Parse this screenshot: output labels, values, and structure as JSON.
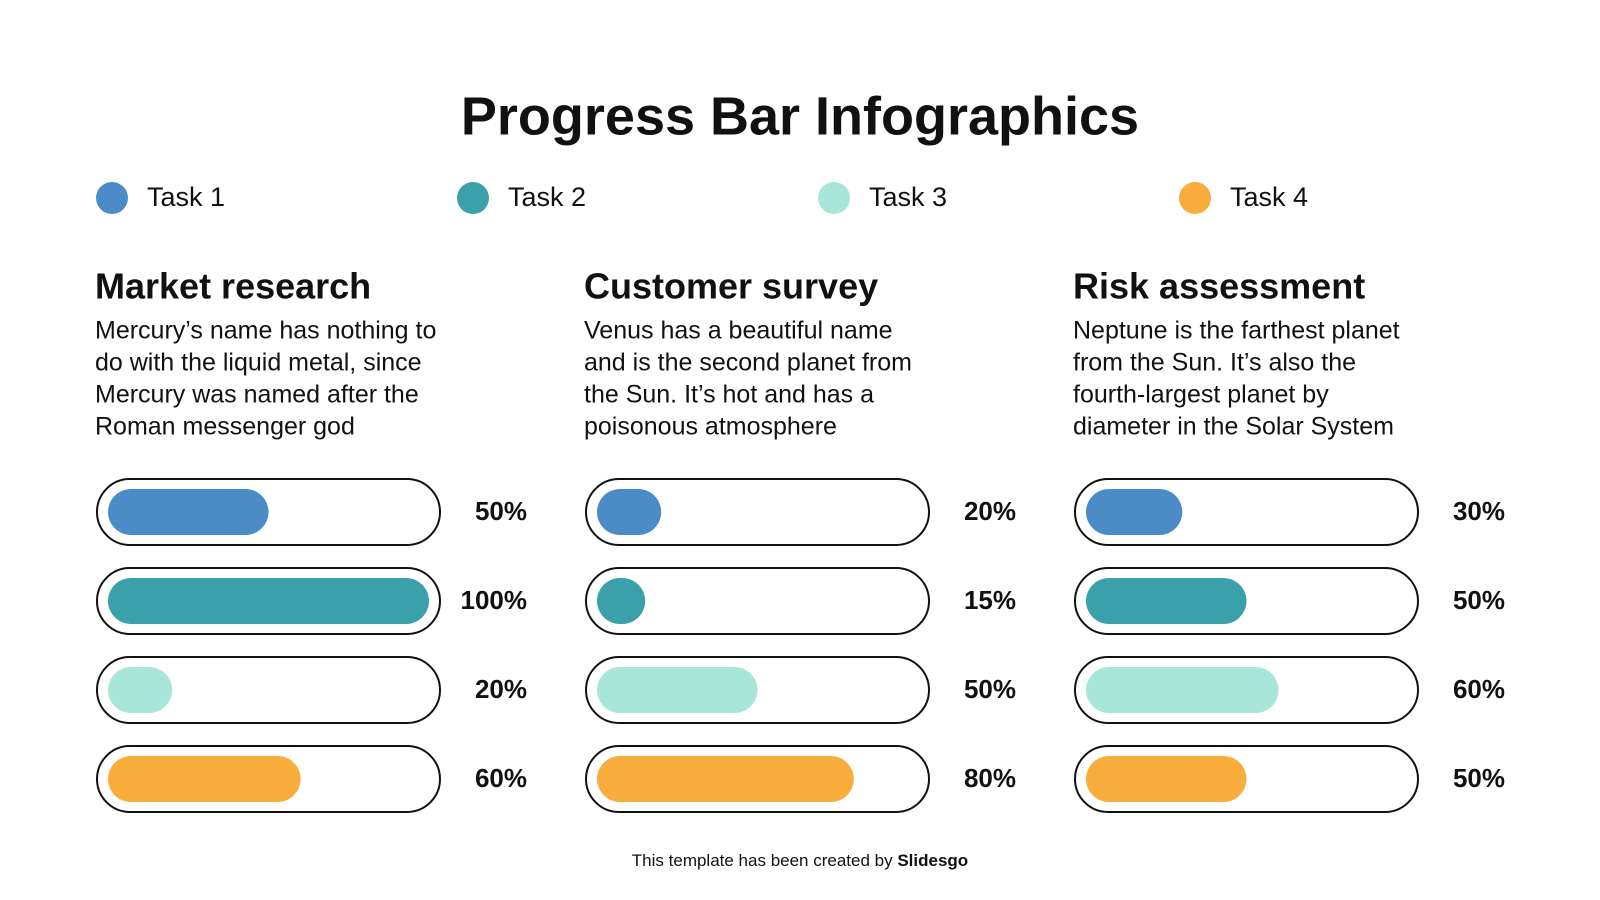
{
  "title": "Progress Bar Infographics",
  "legend": [
    {
      "name": "Task 1",
      "color": "#4a8bc8"
    },
    {
      "name": "Task 2",
      "color": "#3aa0aa"
    },
    {
      "name": "Task 3",
      "color": "#a8e6da"
    },
    {
      "name": "Task 4",
      "color": "#f9ad3c"
    }
  ],
  "chart_data": [
    {
      "type": "bar",
      "title": "Market research",
      "text": [
        "Mercury’s name has nothing to",
        "do with the liquid metal, since",
        "Mercury was named after the",
        "Roman messenger god"
      ],
      "values": [
        50,
        100,
        20,
        60
      ],
      "value_labels": [
        "50%",
        "100%",
        "20%",
        "60%"
      ],
      "xlim": [
        0,
        100
      ]
    },
    {
      "type": "bar",
      "title": "Customer survey",
      "text": [
        "Venus has a beautiful name",
        "and is the second planet from",
        "the Sun. It’s hot and has a",
        "poisonous atmosphere"
      ],
      "values": [
        20,
        15,
        50,
        80
      ],
      "value_labels": [
        "20%",
        "15%",
        "50%",
        "80%"
      ],
      "xlim": [
        0,
        100
      ]
    },
    {
      "type": "bar",
      "title": "Risk assessment",
      "text": [
        "Neptune is the farthest planet",
        "from the Sun. It’s also the",
        "fourth-largest planet by",
        "diameter in the Solar System"
      ],
      "values": [
        30,
        50,
        60,
        50
      ],
      "value_labels": [
        "30%",
        "50%",
        "60%",
        "50%"
      ],
      "xlim": [
        0,
        100
      ]
    }
  ],
  "footer": {
    "text": "This template has been created by ",
    "brand": "Slidesgo"
  }
}
